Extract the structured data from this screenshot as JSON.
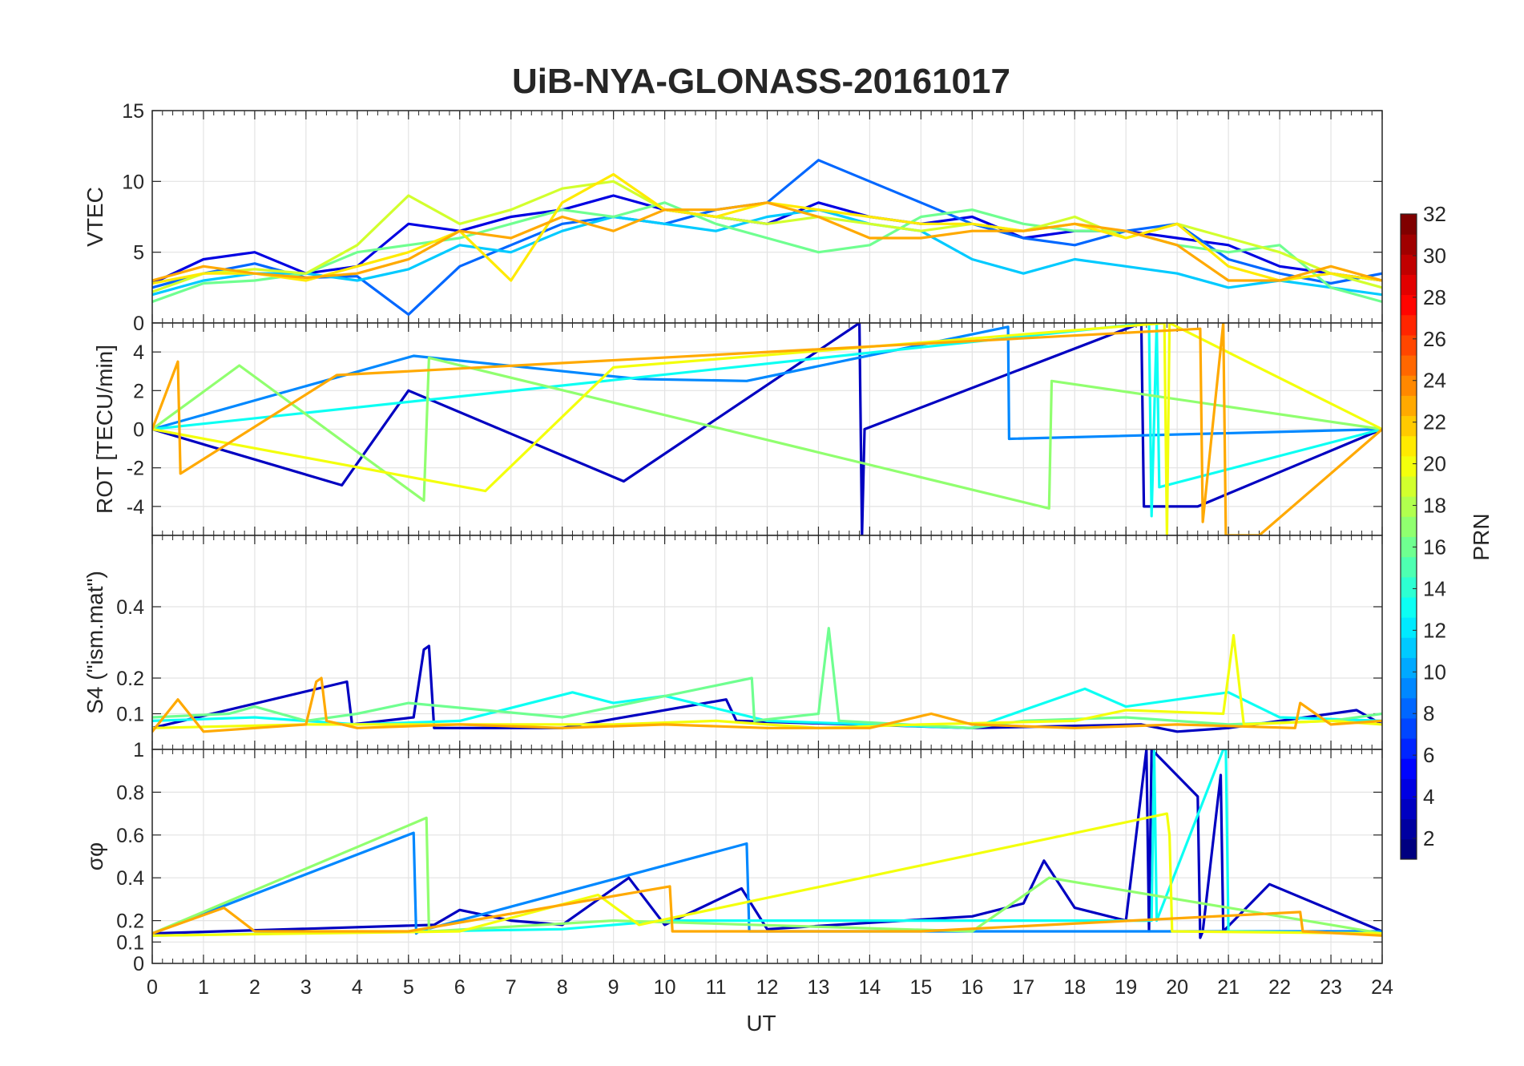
{
  "chart_data": {
    "type": "line",
    "title": "UiB-NYA-GLONASS-20161017",
    "xlabel": "UT",
    "xlim": [
      0,
      24
    ],
    "x_ticks": [
      "0",
      "1",
      "2",
      "3",
      "4",
      "5",
      "6",
      "7",
      "8",
      "9",
      "10",
      "11",
      "12",
      "13",
      "14",
      "15",
      "16",
      "17",
      "18",
      "19",
      "20",
      "21",
      "22",
      "23",
      "24"
    ],
    "grid": true,
    "colorbar": {
      "label": "PRN",
      "range": [
        1,
        32
      ],
      "colormap": "jet",
      "tick_labels": [
        "2",
        "4",
        "6",
        "8",
        "10",
        "12",
        "14",
        "16",
        "18",
        "20",
        "22",
        "24",
        "26",
        "28",
        "30",
        "32"
      ]
    },
    "panels": [
      {
        "id": "vtec",
        "ylabel": "VTEC",
        "ylim": [
          0,
          15
        ],
        "y_ticks": [
          "0",
          "5",
          "10",
          "15"
        ],
        "series": [
          {
            "prn": 4,
            "x": [
              0,
              1,
              2,
              3,
              4,
              5,
              6,
              7,
              8,
              9,
              10,
              11,
              12,
              13,
              14,
              15,
              16,
              17,
              18,
              19,
              20,
              21,
              22,
              23,
              24
            ],
            "y": [
              2.8,
              4.5,
              5.0,
              3.5,
              4.0,
              7.0,
              6.5,
              7.5,
              8.0,
              9.0,
              8.0,
              7.5,
              7.0,
              8.5,
              7.5,
              7.0,
              7.5,
              6.0,
              6.5,
              6.5,
              6.0,
              5.5,
              4.0,
              3.5,
              3.0
            ]
          },
          {
            "prn": 8,
            "x": [
              0,
              1,
              2,
              3,
              4,
              5,
              6,
              7,
              8,
              9,
              10,
              11,
              12,
              13,
              14,
              15,
              16,
              17,
              18,
              19,
              20,
              21,
              22,
              23,
              24
            ],
            "y": [
              2.5,
              3.5,
              4.2,
              3.2,
              3.3,
              0.6,
              4.0,
              5.5,
              7.0,
              7.5,
              7.0,
              8.0,
              8.5,
              11.5,
              10.0,
              8.5,
              7.0,
              6.0,
              5.5,
              6.5,
              7.0,
              4.5,
              3.5,
              2.8,
              3.5
            ]
          },
          {
            "prn": 11,
            "x": [
              0,
              1,
              2,
              3,
              4,
              5,
              6,
              7,
              8,
              9,
              10,
              11,
              12,
              13,
              14,
              15,
              16,
              17,
              18,
              19,
              20,
              21,
              22,
              23,
              24
            ],
            "y": [
              2.0,
              3.0,
              3.5,
              3.5,
              3.0,
              3.8,
              5.5,
              5.0,
              6.5,
              7.5,
              7.0,
              6.5,
              7.5,
              8.0,
              7.0,
              6.5,
              4.5,
              3.5,
              4.5,
              4.0,
              3.5,
              2.5,
              3.0,
              2.5,
              2.0
            ]
          },
          {
            "prn": 16,
            "x": [
              0,
              1,
              2,
              3,
              4,
              5,
              6,
              7,
              8,
              9,
              10,
              11,
              12,
              13,
              14,
              15,
              16,
              17,
              18,
              19,
              20,
              21,
              22,
              23,
              24
            ],
            "y": [
              1.5,
              2.8,
              3.0,
              3.5,
              5.0,
              5.5,
              6.0,
              7.0,
              8.0,
              7.5,
              8.5,
              7.0,
              6.0,
              5.0,
              5.5,
              7.5,
              8.0,
              7.0,
              6.5,
              6.5,
              5.5,
              5.0,
              5.5,
              2.5,
              1.5
            ]
          },
          {
            "prn": 19,
            "x": [
              0,
              1,
              2,
              3,
              4,
              5,
              6,
              7,
              8,
              9,
              10,
              11,
              12,
              13,
              14,
              15,
              16,
              17,
              18,
              19,
              20,
              21,
              22,
              23,
              24
            ],
            "y": [
              2.2,
              3.5,
              3.8,
              3.5,
              5.5,
              9.0,
              7.0,
              8.0,
              9.5,
              10.0,
              8.0,
              7.5,
              7.0,
              7.5,
              7.0,
              6.5,
              7.0,
              6.5,
              7.5,
              6.0,
              7.0,
              6.0,
              5.0,
              3.5,
              2.5
            ]
          },
          {
            "prn": 21,
            "x": [
              0,
              1,
              2,
              3,
              4,
              5,
              6,
              7,
              8,
              9,
              10,
              11,
              12,
              13,
              14,
              15,
              16,
              17,
              18,
              19,
              20,
              21,
              22,
              23,
              24
            ],
            "y": [
              2.8,
              3.5,
              3.5,
              3.0,
              4.0,
              5.0,
              6.5,
              3.0,
              8.5,
              10.5,
              8.0,
              7.5,
              8.5,
              8.0,
              7.5,
              7.0,
              7.0,
              6.5,
              7.0,
              6.0,
              7.0,
              4.0,
              3.0,
              3.5,
              3.0
            ]
          },
          {
            "prn": 23,
            "x": [
              0,
              1,
              2,
              3,
              4,
              5,
              6,
              7,
              8,
              9,
              10,
              11,
              12,
              13,
              14,
              15,
              16,
              17,
              18,
              19,
              20,
              21,
              22,
              23,
              24
            ],
            "y": [
              3.0,
              4.0,
              3.5,
              3.2,
              3.5,
              4.5,
              6.5,
              6.0,
              7.5,
              6.5,
              8.0,
              8.0,
              8.5,
              7.5,
              6.0,
              6.0,
              6.5,
              6.5,
              7.0,
              6.5,
              5.5,
              3.0,
              3.0,
              4.0,
              3.0
            ]
          }
        ]
      },
      {
        "id": "rot",
        "ylabel": "ROT [TECU/min]",
        "ylim": [
          -5.5,
          5.5
        ],
        "y_ticks": [
          "-4",
          "-2",
          "0",
          "2",
          "4"
        ],
        "series": [
          {
            "prn": 3,
            "x": [
              0,
              3.7,
              5.0,
              9.2,
              13.8,
              13.85,
              13.9,
              19.3,
              19.35,
              20.4,
              24
            ],
            "y": [
              0,
              -2.9,
              2.0,
              -2.7,
              5.5,
              -5.5,
              0,
              5.5,
              -4.0,
              -4.0,
              0
            ]
          },
          {
            "prn": 9,
            "x": [
              0,
              5.1,
              9.5,
              11.6,
              16.7,
              16.72,
              24
            ],
            "y": [
              0,
              3.8,
              2.6,
              2.5,
              5.3,
              -0.5,
              0
            ]
          },
          {
            "prn": 13,
            "x": [
              0,
              19.45,
              19.5,
              19.6,
              19.65,
              24
            ],
            "y": [
              0,
              5.5,
              -4.5,
              5.5,
              -3.0,
              0
            ]
          },
          {
            "prn": 17,
            "x": [
              0,
              1.7,
              5.3,
              5.4,
              17.5,
              17.55,
              24
            ],
            "y": [
              0,
              3.3,
              -3.7,
              3.7,
              -4.1,
              2.5,
              0
            ]
          },
          {
            "prn": 20,
            "x": [
              0,
              6.5,
              9.0,
              19.75,
              19.8,
              19.85,
              24
            ],
            "y": [
              0,
              -3.2,
              3.2,
              5.5,
              -5.5,
              5.5,
              0
            ]
          },
          {
            "prn": 23,
            "x": [
              0,
              0.5,
              0.55,
              3.6,
              20.45,
              20.5,
              20.9,
              20.95,
              21.6,
              24
            ],
            "y": [
              0,
              3.5,
              -2.3,
              2.8,
              5.2,
              -4.8,
              5.5,
              -5.5,
              -5.5,
              0
            ]
          }
        ]
      },
      {
        "id": "s4",
        "ylabel": "S4 (\"ism.mat\")",
        "ylim": [
          0,
          0.6
        ],
        "y_ticks": [
          "0.1",
          "0.2",
          "0.4"
        ],
        "series": [
          {
            "prn": 3,
            "x": [
              0,
              3.8,
              3.9,
              5.1,
              5.3,
              5.4,
              5.5,
              8,
              11.2,
              11.4,
              16,
              19.3,
              20,
              21,
              22.5,
              23.5,
              24
            ],
            "y": [
              0.06,
              0.19,
              0.07,
              0.09,
              0.28,
              0.29,
              0.06,
              0.06,
              0.14,
              0.08,
              0.06,
              0.07,
              0.05,
              0.06,
              0.09,
              0.11,
              0.07
            ]
          },
          {
            "prn": 13,
            "x": [
              0,
              2,
              4,
              6,
              8.2,
              9,
              10,
              12,
              14,
              16,
              18.2,
              19,
              20,
              21,
              22,
              24
            ],
            "y": [
              0.08,
              0.09,
              0.07,
              0.08,
              0.16,
              0.13,
              0.15,
              0.08,
              0.07,
              0.06,
              0.17,
              0.12,
              0.14,
              0.16,
              0.09,
              0.08
            ]
          },
          {
            "prn": 16,
            "x": [
              0,
              1.5,
              2,
              3,
              4,
              5,
              8,
              11.7,
              11.75,
              13.0,
              13.2,
              13.4,
              16,
              17,
              19,
              21,
              23,
              24
            ],
            "y": [
              0.09,
              0.1,
              0.12,
              0.08,
              0.1,
              0.13,
              0.09,
              0.2,
              0.08,
              0.1,
              0.34,
              0.08,
              0.06,
              0.08,
              0.09,
              0.07,
              0.08,
              0.1
            ]
          },
          {
            "prn": 20,
            "x": [
              0,
              3,
              6,
              9,
              11,
              13,
              15,
              18,
              19,
              20.9,
              21.1,
              21.3,
              23,
              24
            ],
            "y": [
              0.06,
              0.07,
              0.07,
              0.07,
              0.08,
              0.06,
              0.07,
              0.08,
              0.11,
              0.1,
              0.32,
              0.07,
              0.08,
              0.07
            ]
          },
          {
            "prn": 23,
            "x": [
              0,
              0.5,
              1,
              3,
              3.2,
              3.3,
              3.4,
              4,
              6,
              8,
              10,
              12,
              14,
              15.2,
              16,
              18,
              20,
              22.3,
              22.4,
              23,
              24
            ],
            "y": [
              0.05,
              0.14,
              0.05,
              0.07,
              0.19,
              0.2,
              0.08,
              0.06,
              0.07,
              0.06,
              0.07,
              0.06,
              0.06,
              0.1,
              0.07,
              0.06,
              0.07,
              0.06,
              0.13,
              0.07,
              0.08
            ]
          }
        ]
      },
      {
        "id": "sigma_phi",
        "ylabel": "σφ",
        "ylim": [
          0,
          1
        ],
        "y_ticks": [
          "0",
          "0.1",
          "0.2",
          "0.4",
          "0.6",
          "0.8",
          "1"
        ],
        "series": [
          {
            "prn": 3,
            "x": [
              0,
              5.5,
              6,
              7,
              8,
              9.3,
              10,
              11.5,
              12,
              16,
              17,
              17.4,
              18,
              19,
              19.4,
              19.45,
              19.5,
              20.4,
              20.45,
              20.5,
              20.85,
              20.9,
              21.8,
              24
            ],
            "y": [
              0.14,
              0.18,
              0.25,
              0.2,
              0.18,
              0.4,
              0.18,
              0.35,
              0.16,
              0.22,
              0.28,
              0.48,
              0.26,
              0.2,
              1.0,
              0.15,
              1.0,
              0.78,
              0.12,
              0.15,
              0.88,
              0.15,
              0.37,
              0.15
            ]
          },
          {
            "prn": 9,
            "x": [
              0,
              5.1,
              5.15,
              5.2,
              11.6,
              11.65,
              11.7,
              24
            ],
            "y": [
              0.14,
              0.61,
              0.14,
              0.15,
              0.56,
              0.15,
              0.15,
              0.15
            ]
          },
          {
            "prn": 13,
            "x": [
              0,
              8,
              10,
              19.5,
              19.55,
              19.6,
              20.9,
              20.95,
              21,
              24
            ],
            "y": [
              0.13,
              0.16,
              0.2,
              0.2,
              1.0,
              0.2,
              1.0,
              1.0,
              0.15,
              0.14
            ]
          },
          {
            "prn": 17,
            "x": [
              0,
              5.35,
              5.4,
              5.45,
              9,
              16,
              17.5,
              24
            ],
            "y": [
              0.14,
              0.68,
              0.15,
              0.15,
              0.2,
              0.15,
              0.4,
              0.14
            ]
          },
          {
            "prn": 20,
            "x": [
              0,
              6,
              8.7,
              9.5,
              19.8,
              19.85,
              19.9,
              24
            ],
            "y": [
              0.13,
              0.15,
              0.32,
              0.18,
              0.7,
              0.6,
              0.15,
              0.14
            ]
          },
          {
            "prn": 23,
            "x": [
              0,
              1.4,
              2,
              5,
              10.1,
              10.15,
              15,
              22.4,
              22.45,
              24
            ],
            "y": [
              0.14,
              0.26,
              0.15,
              0.15,
              0.36,
              0.15,
              0.15,
              0.24,
              0.15,
              0.13
            ]
          }
        ]
      }
    ]
  }
}
